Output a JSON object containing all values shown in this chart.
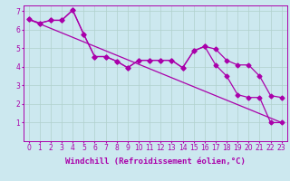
{
  "background_color": "#cce8ef",
  "grid_color": "#b0d0cc",
  "line_color": "#aa00aa",
  "xlim": [
    -0.5,
    23.5
  ],
  "ylim": [
    0,
    7.3
  ],
  "xticks": [
    0,
    1,
    2,
    3,
    4,
    5,
    6,
    7,
    8,
    9,
    10,
    11,
    12,
    13,
    14,
    15,
    16,
    17,
    18,
    19,
    20,
    21,
    22,
    23
  ],
  "yticks": [
    1,
    2,
    3,
    4,
    5,
    6,
    7
  ],
  "xlabel": "Windchill (Refroidissement éolien,°C)",
  "line1_x": [
    0,
    23
  ],
  "line1_y": [
    6.55,
    1.0
  ],
  "line2_x": [
    0,
    1,
    2,
    3,
    4,
    5,
    6,
    7,
    8,
    9,
    10,
    11,
    12,
    13,
    14,
    15,
    16,
    17,
    18,
    19,
    20,
    21,
    22,
    23
  ],
  "line2_y": [
    6.55,
    6.35,
    6.5,
    6.5,
    7.05,
    5.75,
    4.55,
    4.55,
    4.3,
    3.95,
    4.35,
    4.35,
    4.35,
    4.35,
    3.95,
    4.85,
    5.1,
    4.95,
    4.35,
    4.1,
    4.1,
    3.5,
    2.45,
    2.35
  ],
  "line3_x": [
    0,
    1,
    2,
    3,
    4,
    5,
    6,
    7,
    8,
    9,
    10,
    11,
    12,
    13,
    14,
    15,
    16,
    17,
    18,
    19,
    20,
    21,
    22,
    23
  ],
  "line3_y": [
    6.55,
    6.35,
    6.5,
    6.5,
    7.05,
    5.75,
    4.55,
    4.55,
    4.3,
    3.95,
    4.35,
    4.35,
    4.35,
    4.35,
    3.95,
    4.85,
    5.1,
    4.1,
    3.5,
    2.5,
    2.35,
    2.35,
    1.0,
    1.0
  ],
  "marker": "D",
  "markersize": 2.5,
  "linewidth": 0.9,
  "tick_fontsize": 5.5,
  "label_fontsize": 6.5
}
